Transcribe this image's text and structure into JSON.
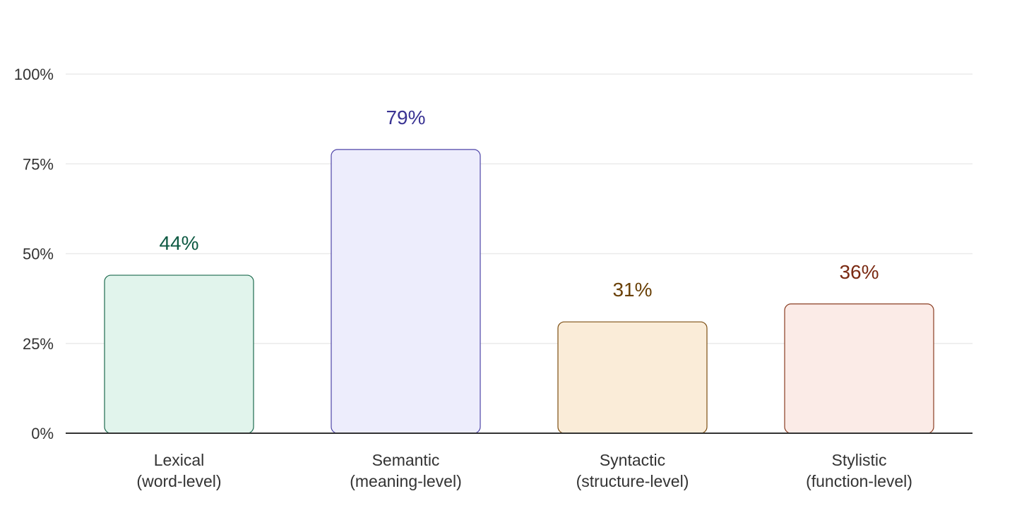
{
  "chart_data": {
    "type": "bar",
    "title": "",
    "xlabel": "",
    "ylabel": "",
    "categories": [
      [
        "Lexical",
        "(word-level)"
      ],
      [
        "Semantic",
        "(meaning-level)"
      ],
      [
        "Syntactic",
        "(structure-level)"
      ],
      [
        "Stylistic",
        "(function-level)"
      ]
    ],
    "values": [
      44,
      79,
      31,
      36
    ],
    "value_labels": [
      "44%",
      "79%",
      "31%",
      "36%"
    ],
    "ylim": [
      0,
      100
    ],
    "yticks": [
      0,
      25,
      50,
      75,
      100
    ],
    "ytick_labels": [
      "0%",
      "25%",
      "50%",
      "75%",
      "100%"
    ],
    "grid": true,
    "legend": "none",
    "colors": [
      {
        "fill": "#e1f4ec",
        "stroke": "#1e6b4f",
        "label": "#0e5a43"
      },
      {
        "fill": "#ededfc",
        "stroke": "#4e45a8",
        "label": "#3a3393"
      },
      {
        "fill": "#faecd8",
        "stroke": "#7c4e12",
        "label": "#6a4108"
      },
      {
        "fill": "#fbebe7",
        "stroke": "#8a3d22",
        "label": "#7a2a12"
      }
    ]
  }
}
